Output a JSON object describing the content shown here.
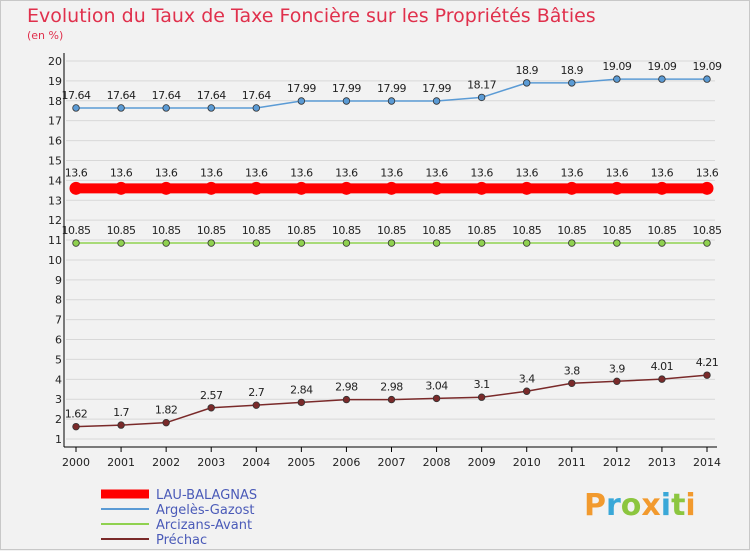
{
  "title": "Evolution du Taux de Taxe Foncière sur les Propriétés Bâties",
  "subtitle": "(en %)",
  "logo": {
    "text": "Proxiti"
  },
  "colors": {
    "title": "#e0304c",
    "axis": "#000000",
    "grid": "#d8d8d8"
  },
  "chart_data": {
    "type": "line",
    "title": "Evolution du Taux de Taxe Foncière sur les Propriétés Bâties",
    "ylabel": "(en %)",
    "xlabel": "",
    "ylim": [
      1,
      20
    ],
    "yticks": [
      "1",
      "2",
      "3",
      "4",
      "5",
      "6",
      "7",
      "8",
      "9",
      "10",
      "11",
      "12",
      "13",
      "14",
      "15",
      "16",
      "17",
      "18",
      "19",
      "20"
    ],
    "x": [
      "2000",
      "2001",
      "2002",
      "2003",
      "2004",
      "2005",
      "2006",
      "2007",
      "2008",
      "2009",
      "2010",
      "2011",
      "2012",
      "2013",
      "2014"
    ],
    "grid": "horizontal",
    "legend_position": "bottom-left",
    "series": [
      {
        "name": "LAU-BALAGNAS",
        "color": "#ff0000",
        "values": [
          13.6,
          13.6,
          13.6,
          13.6,
          13.6,
          13.6,
          13.6,
          13.6,
          13.6,
          13.6,
          13.6,
          13.6,
          13.6,
          13.6,
          13.6
        ],
        "labels": [
          "13.6",
          "13.6",
          "13.6",
          "13.6",
          "13.6",
          "13.6",
          "13.6",
          "13.6",
          "13.6",
          "13.6",
          "13.6",
          "13.6",
          "13.6",
          "13.6",
          "13.6"
        ]
      },
      {
        "name": "Argelès-Gazost",
        "color": "#5b9bd5",
        "values": [
          17.64,
          17.64,
          17.64,
          17.64,
          17.64,
          17.99,
          17.99,
          17.99,
          17.99,
          18.17,
          18.9,
          18.9,
          19.09,
          19.09,
          19.09
        ],
        "labels": [
          "17.64",
          "17.64",
          "17.64",
          "17.64",
          "17.64",
          "17.99",
          "17.99",
          "17.99",
          "17.99",
          "18.17",
          "18.9",
          "18.9",
          "19.09",
          "19.09",
          "19.09"
        ]
      },
      {
        "name": "Arcizans-Avant",
        "color": "#8fd14f",
        "values": [
          10.85,
          10.85,
          10.85,
          10.85,
          10.85,
          10.85,
          10.85,
          10.85,
          10.85,
          10.85,
          10.85,
          10.85,
          10.85,
          10.85,
          10.85
        ],
        "labels": [
          "10.85",
          "10.85",
          "10.85",
          "10.85",
          "10.85",
          "10.85",
          "10.85",
          "10.85",
          "10.85",
          "10.85",
          "10.85",
          "10.85",
          "10.85",
          "10.85",
          "10.85"
        ]
      },
      {
        "name": "Préchac",
        "color": "#7a2a2a",
        "values": [
          1.62,
          1.7,
          1.82,
          2.57,
          2.7,
          2.84,
          2.98,
          2.98,
          3.04,
          3.1,
          3.4,
          3.8,
          3.9,
          4.01,
          4.21
        ],
        "labels": [
          "1.62",
          "1.7",
          "1.82",
          "2.57",
          "2.7",
          "2.84",
          "2.98",
          "2.98",
          "3.04",
          "3.1",
          "3.4",
          "3.8",
          "3.9",
          "4.01",
          "4.21"
        ]
      }
    ]
  }
}
